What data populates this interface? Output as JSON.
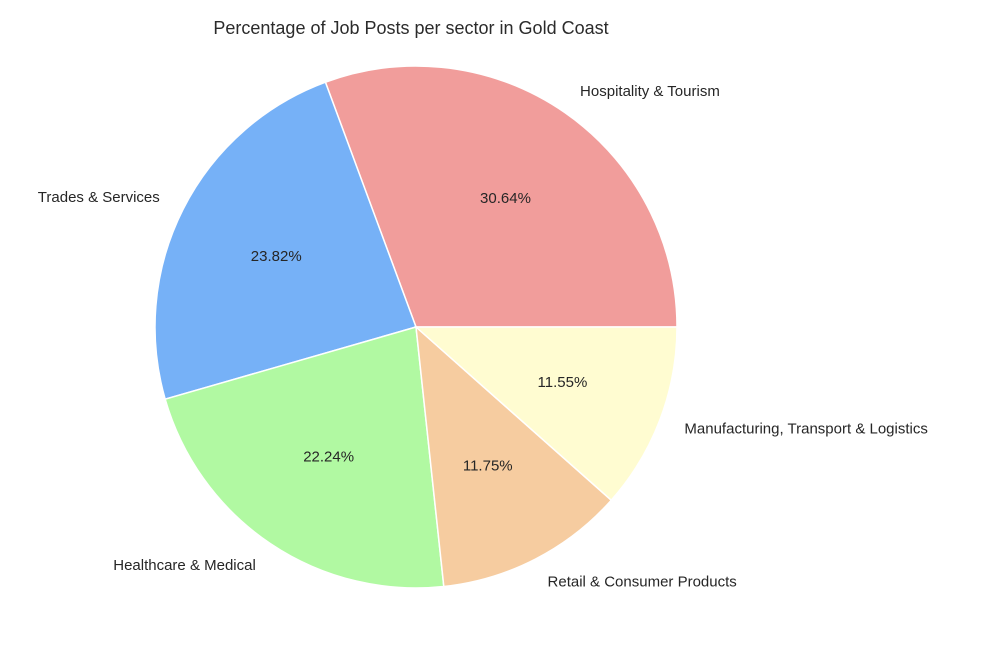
{
  "chart_data": {
    "type": "pie",
    "title": "Percentage of Job Posts per sector in Gold Coast",
    "slices": [
      {
        "label": "Hospitality & Tourism",
        "value": 30.64,
        "value_label": "30.64%",
        "color": "#F19D9B"
      },
      {
        "label": "Trades & Services",
        "value": 23.82,
        "value_label": "23.82%",
        "color": "#76B1F7"
      },
      {
        "label": "Healthcare & Medical",
        "value": 22.24,
        "value_label": "22.24%",
        "color": "#B1F9A2"
      },
      {
        "label": "Retail & Consumer Products",
        "value": 11.75,
        "value_label": "11.75%",
        "color": "#F6CCA0"
      },
      {
        "label": "Manufacturing, Transport & Logistics",
        "value": 11.55,
        "value_label": "11.55%",
        "color": "#FFFCD1"
      }
    ],
    "start_angle_deg": 0,
    "direction": "counterclockwise"
  }
}
